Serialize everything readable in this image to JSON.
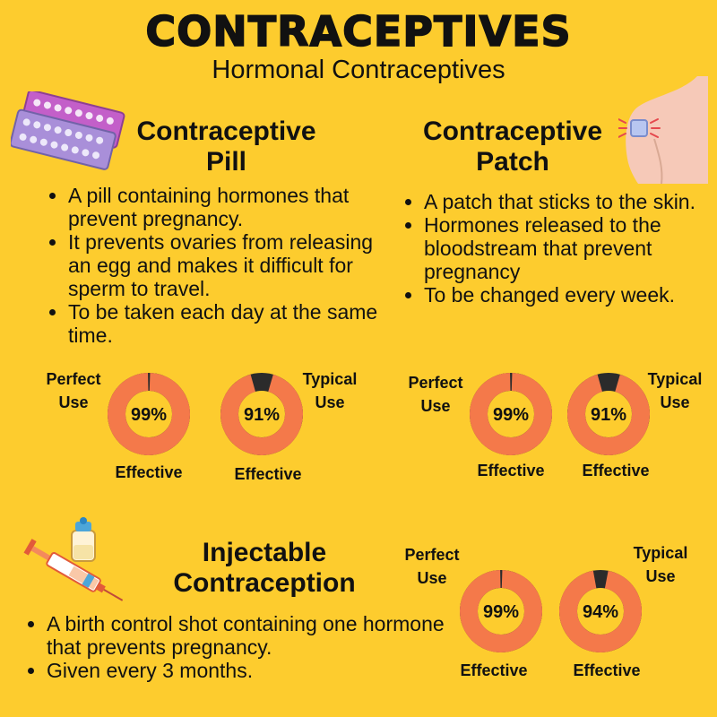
{
  "title": "CONTRACEPTIVES",
  "subtitle": "Hormonal Contraceptives",
  "pill": {
    "title_line1": "Contraceptive",
    "title_line2": "Pill",
    "points": [
      "A pill containing hormones that prevent pregnancy.",
      "It prevents ovaries from releasing an egg and makes it difficult for sperm to travel.",
      "To be taken each day at the same time."
    ],
    "perfect_label": [
      "Perfect",
      "Use"
    ],
    "typical_label": [
      "Typical",
      "Use"
    ],
    "perfect_value": "99%",
    "typical_value": "91%",
    "perfect_pct": 99,
    "typical_pct": 91,
    "effective_label": "Effective"
  },
  "patch": {
    "title_line1": "Contraceptive",
    "title_line2": "Patch",
    "points": [
      "A patch that sticks to the skin.",
      "Hormones released to the bloodstream that prevent pregnancy",
      "To be changed every week."
    ],
    "perfect_label": [
      "Perfect",
      "Use"
    ],
    "typical_label": [
      "Typical",
      "Use"
    ],
    "perfect_value": "99%",
    "typical_value": "91%",
    "perfect_pct": 99,
    "typical_pct": 91,
    "effective_label": "Effective"
  },
  "injection": {
    "title_line1": "Injectable",
    "title_line2": "Contraception",
    "points": [
      "A birth control shot containing one hormone that prevents pregnancy.",
      "Given every 3 months."
    ],
    "perfect_label": [
      "Perfect",
      "Use"
    ],
    "typical_label": [
      "Typical",
      "Use"
    ],
    "perfect_value": "99%",
    "typical_value": "94%",
    "perfect_pct": 99,
    "typical_pct": 94,
    "effective_label": "Effective"
  },
  "colors": {
    "background": "#FDCC2E",
    "ring_fill": "#F4794A",
    "ring_remainder": "#2B2B2B",
    "ring_center": "#FDCC2E"
  },
  "icons": {
    "pill": "pill-pack-icon",
    "patch": "shoulder-patch-icon",
    "injection": "syringe-vial-icon"
  }
}
